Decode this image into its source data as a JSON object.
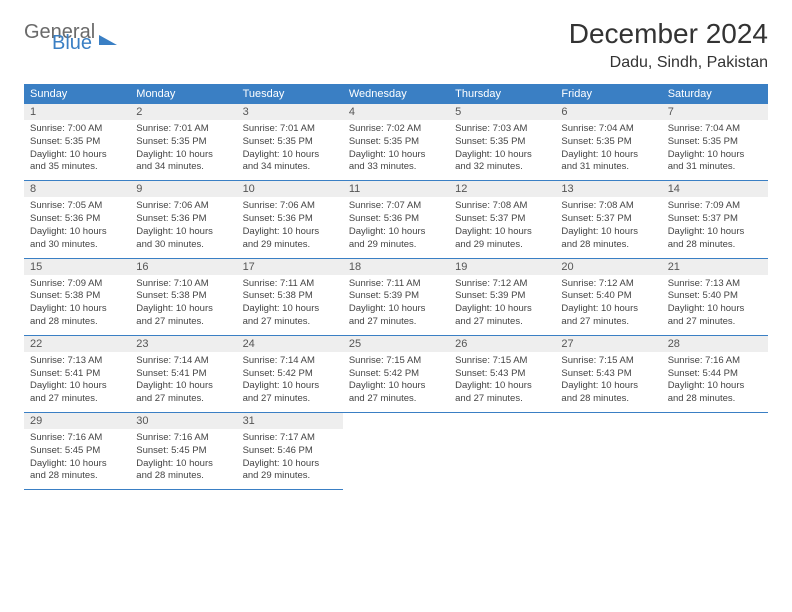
{
  "logo": {
    "general": "General",
    "blue": "Blue"
  },
  "header": {
    "title": "December 2024",
    "location": "Dadu, Sindh, Pakistan"
  },
  "colors": {
    "header_bg": "#3a7fc4",
    "header_text": "#ffffff",
    "daynum_bg": "#eeeeee",
    "rule": "#3a7fc4",
    "body_text": "#444444"
  },
  "weekdays": [
    "Sunday",
    "Monday",
    "Tuesday",
    "Wednesday",
    "Thursday",
    "Friday",
    "Saturday"
  ],
  "days": [
    {
      "n": 1,
      "sr": "7:00 AM",
      "ss": "5:35 PM",
      "dl": "10 hours and 35 minutes."
    },
    {
      "n": 2,
      "sr": "7:01 AM",
      "ss": "5:35 PM",
      "dl": "10 hours and 34 minutes."
    },
    {
      "n": 3,
      "sr": "7:01 AM",
      "ss": "5:35 PM",
      "dl": "10 hours and 34 minutes."
    },
    {
      "n": 4,
      "sr": "7:02 AM",
      "ss": "5:35 PM",
      "dl": "10 hours and 33 minutes."
    },
    {
      "n": 5,
      "sr": "7:03 AM",
      "ss": "5:35 PM",
      "dl": "10 hours and 32 minutes."
    },
    {
      "n": 6,
      "sr": "7:04 AM",
      "ss": "5:35 PM",
      "dl": "10 hours and 31 minutes."
    },
    {
      "n": 7,
      "sr": "7:04 AM",
      "ss": "5:35 PM",
      "dl": "10 hours and 31 minutes."
    },
    {
      "n": 8,
      "sr": "7:05 AM",
      "ss": "5:36 PM",
      "dl": "10 hours and 30 minutes."
    },
    {
      "n": 9,
      "sr": "7:06 AM",
      "ss": "5:36 PM",
      "dl": "10 hours and 30 minutes."
    },
    {
      "n": 10,
      "sr": "7:06 AM",
      "ss": "5:36 PM",
      "dl": "10 hours and 29 minutes."
    },
    {
      "n": 11,
      "sr": "7:07 AM",
      "ss": "5:36 PM",
      "dl": "10 hours and 29 minutes."
    },
    {
      "n": 12,
      "sr": "7:08 AM",
      "ss": "5:37 PM",
      "dl": "10 hours and 29 minutes."
    },
    {
      "n": 13,
      "sr": "7:08 AM",
      "ss": "5:37 PM",
      "dl": "10 hours and 28 minutes."
    },
    {
      "n": 14,
      "sr": "7:09 AM",
      "ss": "5:37 PM",
      "dl": "10 hours and 28 minutes."
    },
    {
      "n": 15,
      "sr": "7:09 AM",
      "ss": "5:38 PM",
      "dl": "10 hours and 28 minutes."
    },
    {
      "n": 16,
      "sr": "7:10 AM",
      "ss": "5:38 PM",
      "dl": "10 hours and 27 minutes."
    },
    {
      "n": 17,
      "sr": "7:11 AM",
      "ss": "5:38 PM",
      "dl": "10 hours and 27 minutes."
    },
    {
      "n": 18,
      "sr": "7:11 AM",
      "ss": "5:39 PM",
      "dl": "10 hours and 27 minutes."
    },
    {
      "n": 19,
      "sr": "7:12 AM",
      "ss": "5:39 PM",
      "dl": "10 hours and 27 minutes."
    },
    {
      "n": 20,
      "sr": "7:12 AM",
      "ss": "5:40 PM",
      "dl": "10 hours and 27 minutes."
    },
    {
      "n": 21,
      "sr": "7:13 AM",
      "ss": "5:40 PM",
      "dl": "10 hours and 27 minutes."
    },
    {
      "n": 22,
      "sr": "7:13 AM",
      "ss": "5:41 PM",
      "dl": "10 hours and 27 minutes."
    },
    {
      "n": 23,
      "sr": "7:14 AM",
      "ss": "5:41 PM",
      "dl": "10 hours and 27 minutes."
    },
    {
      "n": 24,
      "sr": "7:14 AM",
      "ss": "5:42 PM",
      "dl": "10 hours and 27 minutes."
    },
    {
      "n": 25,
      "sr": "7:15 AM",
      "ss": "5:42 PM",
      "dl": "10 hours and 27 minutes."
    },
    {
      "n": 26,
      "sr": "7:15 AM",
      "ss": "5:43 PM",
      "dl": "10 hours and 27 minutes."
    },
    {
      "n": 27,
      "sr": "7:15 AM",
      "ss": "5:43 PM",
      "dl": "10 hours and 28 minutes."
    },
    {
      "n": 28,
      "sr": "7:16 AM",
      "ss": "5:44 PM",
      "dl": "10 hours and 28 minutes."
    },
    {
      "n": 29,
      "sr": "7:16 AM",
      "ss": "5:45 PM",
      "dl": "10 hours and 28 minutes."
    },
    {
      "n": 30,
      "sr": "7:16 AM",
      "ss": "5:45 PM",
      "dl": "10 hours and 28 minutes."
    },
    {
      "n": 31,
      "sr": "7:17 AM",
      "ss": "5:46 PM",
      "dl": "10 hours and 29 minutes."
    }
  ],
  "labels": {
    "sunrise": "Sunrise:",
    "sunset": "Sunset:",
    "daylight": "Daylight:"
  },
  "layout": {
    "start_weekday": 0,
    "cols": 7
  }
}
